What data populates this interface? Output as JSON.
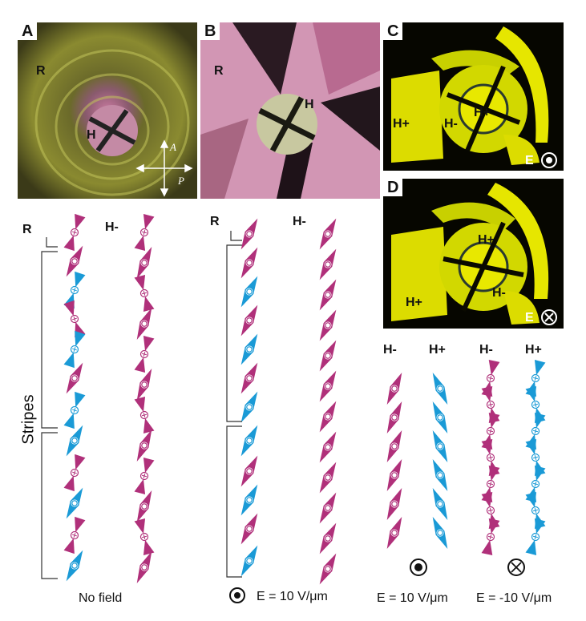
{
  "panels": {
    "a": {
      "label": "A",
      "r": "R",
      "h": "H",
      "axis_a": "A",
      "axis_p": "P"
    },
    "b": {
      "label": "B",
      "r": "R",
      "h": "H"
    },
    "c": {
      "label": "C",
      "h_plus_left": "H+",
      "h_minus": "H-",
      "h_plus_center": "H+",
      "e": "E",
      "e_symbol": "out-of-page-dot"
    },
    "d": {
      "label": "D",
      "h_plus_center": "H+",
      "h_minus": "H-",
      "h_plus_left": "H+",
      "e": "E",
      "e_symbol": "into-page-cross"
    }
  },
  "diagram": {
    "headers_left": {
      "r": "R",
      "h_minus": "H-"
    },
    "headers_mid": {
      "r": "R",
      "h_minus": "H-"
    },
    "headers_right": {
      "h_minus_1": "H-",
      "h_plus_1": "H+",
      "h_minus_2": "H-",
      "h_plus_2": "H+"
    },
    "stripes_label": "Stripes",
    "captions": {
      "no_field": "No field",
      "field_mid": "E = 10 V/μm",
      "field_right_1": "E = 10 V/μm",
      "field_right_2": "E = -10 V/μm"
    },
    "colors": {
      "magenta": "#b0307a",
      "cyan": "#1a9ad6"
    }
  }
}
